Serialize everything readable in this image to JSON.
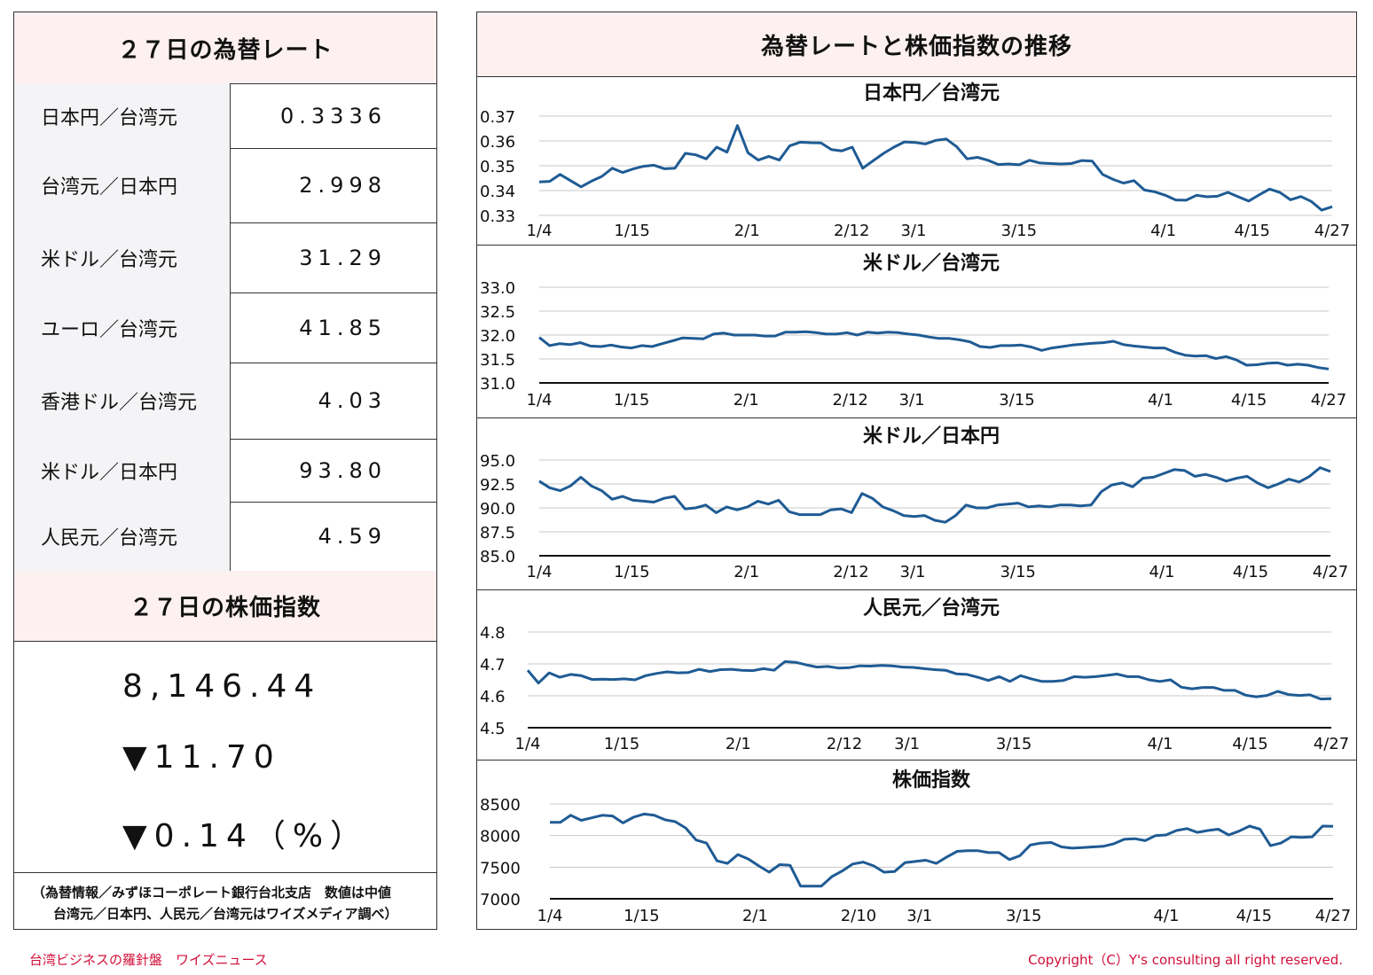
{
  "left": {
    "rates_title": "２７日の為替レート",
    "rates": [
      {
        "label": "日本円／台湾元",
        "value": "0.3336"
      },
      {
        "label": "台湾元／日本円",
        "value": "2.998"
      },
      {
        "label": "米ドル／台湾元",
        "value": "31.29"
      },
      {
        "label": "ユーロ／台湾元",
        "value": "41.85"
      },
      {
        "label": "香港ドル／台湾元",
        "value": "4.03"
      },
      {
        "label": "米ドル／日本円",
        "value": "93.80"
      },
      {
        "label": "人民元／台湾元",
        "value": "4.59"
      }
    ],
    "stock_title": "２７日の株価指数",
    "stock_value": "8,146.44",
    "stock_change": "▼11.70",
    "stock_change_pct": "▼0.14（%）",
    "note_line1": "（為替情報／みずほコーポレート銀行台北支店　数値は中値",
    "note_line2": "台湾元／日本円、人民元／台湾元はワイズメディア調べ）"
  },
  "right": {
    "title": "為替レートと株価指数の推移"
  },
  "footer": {
    "left": "台湾ビジネスの羅針盤　ワイズニュース",
    "right": "Copyright（C）Y's consulting all right reserved."
  },
  "colors": {
    "line": "#1f5b94",
    "header_bg": "#fdf0f0",
    "label_bg": "#f4f4f6",
    "footer": "#d0103a"
  },
  "chart_data": [
    {
      "type": "line",
      "title": "日本円／台湾元",
      "x_ticks": [
        "1/4",
        "1/15",
        "2/1",
        "2/12",
        "3/1",
        "3/15",
        "4/1",
        "4/15",
        "4/27"
      ],
      "y_ticks": [
        "0.37",
        "0.36",
        "0.35",
        "0.34",
        "0.33"
      ],
      "ylim": [
        0.33,
        0.37
      ],
      "grid": true,
      "values": [
        0.3435,
        0.3437,
        0.3465,
        0.344,
        0.3415,
        0.3438,
        0.3457,
        0.349,
        0.3473,
        0.3487,
        0.3498,
        0.3502,
        0.3488,
        0.349,
        0.355,
        0.3544,
        0.3528,
        0.3575,
        0.3555,
        0.3662,
        0.3552,
        0.3523,
        0.3538,
        0.3523,
        0.358,
        0.3595,
        0.3593,
        0.3592,
        0.3565,
        0.356,
        0.3575,
        0.349,
        0.352,
        0.355,
        0.3575,
        0.3596,
        0.3594,
        0.3588,
        0.3602,
        0.3608,
        0.3577,
        0.3528,
        0.3534,
        0.3522,
        0.3505,
        0.3507,
        0.3504,
        0.3522,
        0.3511,
        0.3509,
        0.3507,
        0.3509,
        0.3521,
        0.3519,
        0.3465,
        0.3445,
        0.343,
        0.344,
        0.3402,
        0.3395,
        0.3381,
        0.3362,
        0.3361,
        0.3381,
        0.3375,
        0.3377,
        0.3393,
        0.3375,
        0.3358,
        0.3383,
        0.3406,
        0.3392,
        0.3363,
        0.3376,
        0.3356,
        0.3321,
        0.3335
      ]
    },
    {
      "type": "line",
      "title": "米ドル／台湾元",
      "x_ticks": [
        "1/4",
        "1/15",
        "2/1",
        "2/12",
        "3/1",
        "3/15",
        "4/1",
        "4/15",
        "4/27"
      ],
      "y_ticks": [
        "33.0",
        "32.5",
        "32.0",
        "31.5",
        "31.0"
      ],
      "ylim": [
        31.0,
        33.0
      ],
      "grid": true,
      "values": [
        31.95,
        31.78,
        31.82,
        31.8,
        31.84,
        31.77,
        31.76,
        31.79,
        31.75,
        31.73,
        31.78,
        31.76,
        31.82,
        31.88,
        31.94,
        31.93,
        31.92,
        32.02,
        32.04,
        32.0,
        32.0,
        32.0,
        31.98,
        31.98,
        32.06,
        32.06,
        32.07,
        32.05,
        32.02,
        32.02,
        32.05,
        32.0,
        32.06,
        32.04,
        32.06,
        32.05,
        32.02,
        32.0,
        31.96,
        31.93,
        31.93,
        31.9,
        31.86,
        31.76,
        31.74,
        31.78,
        31.78,
        31.79,
        31.75,
        31.68,
        31.73,
        31.76,
        31.79,
        31.81,
        31.83,
        31.84,
        31.87,
        31.8,
        31.77,
        31.75,
        31.73,
        31.73,
        31.64,
        31.58,
        31.56,
        31.57,
        31.51,
        31.55,
        31.48,
        31.37,
        31.38,
        31.41,
        31.42,
        31.37,
        31.39,
        31.37,
        31.32,
        31.29
      ]
    },
    {
      "type": "line",
      "title": "米ドル／日本円",
      "x_ticks": [
        "1/4",
        "1/15",
        "2/1",
        "2/12",
        "3/1",
        "3/15",
        "4/1",
        "4/15",
        "4/27"
      ],
      "y_ticks": [
        "95.0",
        "92.5",
        "90.0",
        "87.5",
        "85.0"
      ],
      "ylim": [
        85.0,
        95.0
      ],
      "grid": true,
      "values": [
        92.8,
        92.1,
        91.8,
        92.3,
        93.2,
        92.3,
        91.8,
        90.9,
        91.2,
        90.8,
        90.7,
        90.6,
        91.0,
        91.2,
        89.9,
        90.0,
        90.3,
        89.5,
        90.1,
        89.8,
        90.1,
        90.7,
        90.4,
        90.8,
        89.6,
        89.3,
        89.3,
        89.3,
        89.8,
        89.9,
        89.5,
        91.5,
        91.0,
        90.1,
        89.7,
        89.2,
        89.1,
        89.2,
        88.7,
        88.5,
        89.2,
        90.3,
        90.0,
        90.0,
        90.3,
        90.4,
        90.5,
        90.1,
        90.2,
        90.1,
        90.3,
        90.3,
        90.2,
        90.3,
        91.7,
        92.4,
        92.6,
        92.2,
        93.1,
        93.2,
        93.6,
        94.0,
        93.9,
        93.3,
        93.5,
        93.2,
        92.8,
        93.1,
        93.3,
        92.6,
        92.1,
        92.5,
        93.0,
        92.7,
        93.3,
        94.2,
        93.8
      ]
    },
    {
      "type": "line",
      "title": "人民元／台湾元",
      "x_ticks": [
        "1/4",
        "1/15",
        "2/1",
        "2/12",
        "3/1",
        "3/15",
        "4/1",
        "4/15",
        "4/27"
      ],
      "y_ticks": [
        "4.8",
        "4.7",
        "4.6",
        "4.5"
      ],
      "ylim": [
        4.5,
        4.8
      ],
      "grid": true,
      "values": [
        4.68,
        4.64,
        4.672,
        4.658,
        4.667,
        4.663,
        4.651,
        4.652,
        4.651,
        4.653,
        4.65,
        4.663,
        4.67,
        4.675,
        4.672,
        4.673,
        4.683,
        4.676,
        4.682,
        4.683,
        4.68,
        4.679,
        4.685,
        4.68,
        4.707,
        4.705,
        4.697,
        4.69,
        4.692,
        4.687,
        4.688,
        4.694,
        4.693,
        4.695,
        4.694,
        4.69,
        4.689,
        4.685,
        4.682,
        4.68,
        4.669,
        4.667,
        4.658,
        4.648,
        4.66,
        4.645,
        4.663,
        4.653,
        4.645,
        4.645,
        4.648,
        4.66,
        4.658,
        4.66,
        4.664,
        4.668,
        4.66,
        4.66,
        4.65,
        4.645,
        4.65,
        4.627,
        4.622,
        4.626,
        4.626,
        4.617,
        4.617,
        4.602,
        4.597,
        4.601,
        4.614,
        4.604,
        4.601,
        4.603,
        4.59,
        4.591
      ]
    },
    {
      "type": "line",
      "title": "株価指数",
      "x_ticks": [
        "1/4",
        "1/15",
        "2/1",
        "2/10",
        "3/1",
        "3/15",
        "4/1",
        "4/15",
        "4/27"
      ],
      "y_ticks": [
        "8500",
        "8000",
        "7500",
        "7000"
      ],
      "ylim": [
        7000,
        8500
      ],
      "grid": true,
      "values": [
        8210,
        8210,
        8320,
        8240,
        8280,
        8320,
        8310,
        8200,
        8290,
        8340,
        8320,
        8250,
        8220,
        8120,
        7930,
        7880,
        7600,
        7560,
        7700,
        7630,
        7520,
        7420,
        7540,
        7530,
        7200,
        7200,
        7200,
        7350,
        7440,
        7550,
        7580,
        7520,
        7420,
        7430,
        7570,
        7590,
        7610,
        7560,
        7660,
        7750,
        7760,
        7760,
        7730,
        7730,
        7620,
        7680,
        7850,
        7880,
        7890,
        7820,
        7800,
        7810,
        7820,
        7830,
        7870,
        7940,
        7950,
        7920,
        8000,
        8010,
        8080,
        8110,
        8050,
        8080,
        8100,
        8010,
        8070,
        8150,
        8100,
        7840,
        7880,
        7980,
        7970,
        7980,
        8150,
        8146
      ]
    }
  ]
}
